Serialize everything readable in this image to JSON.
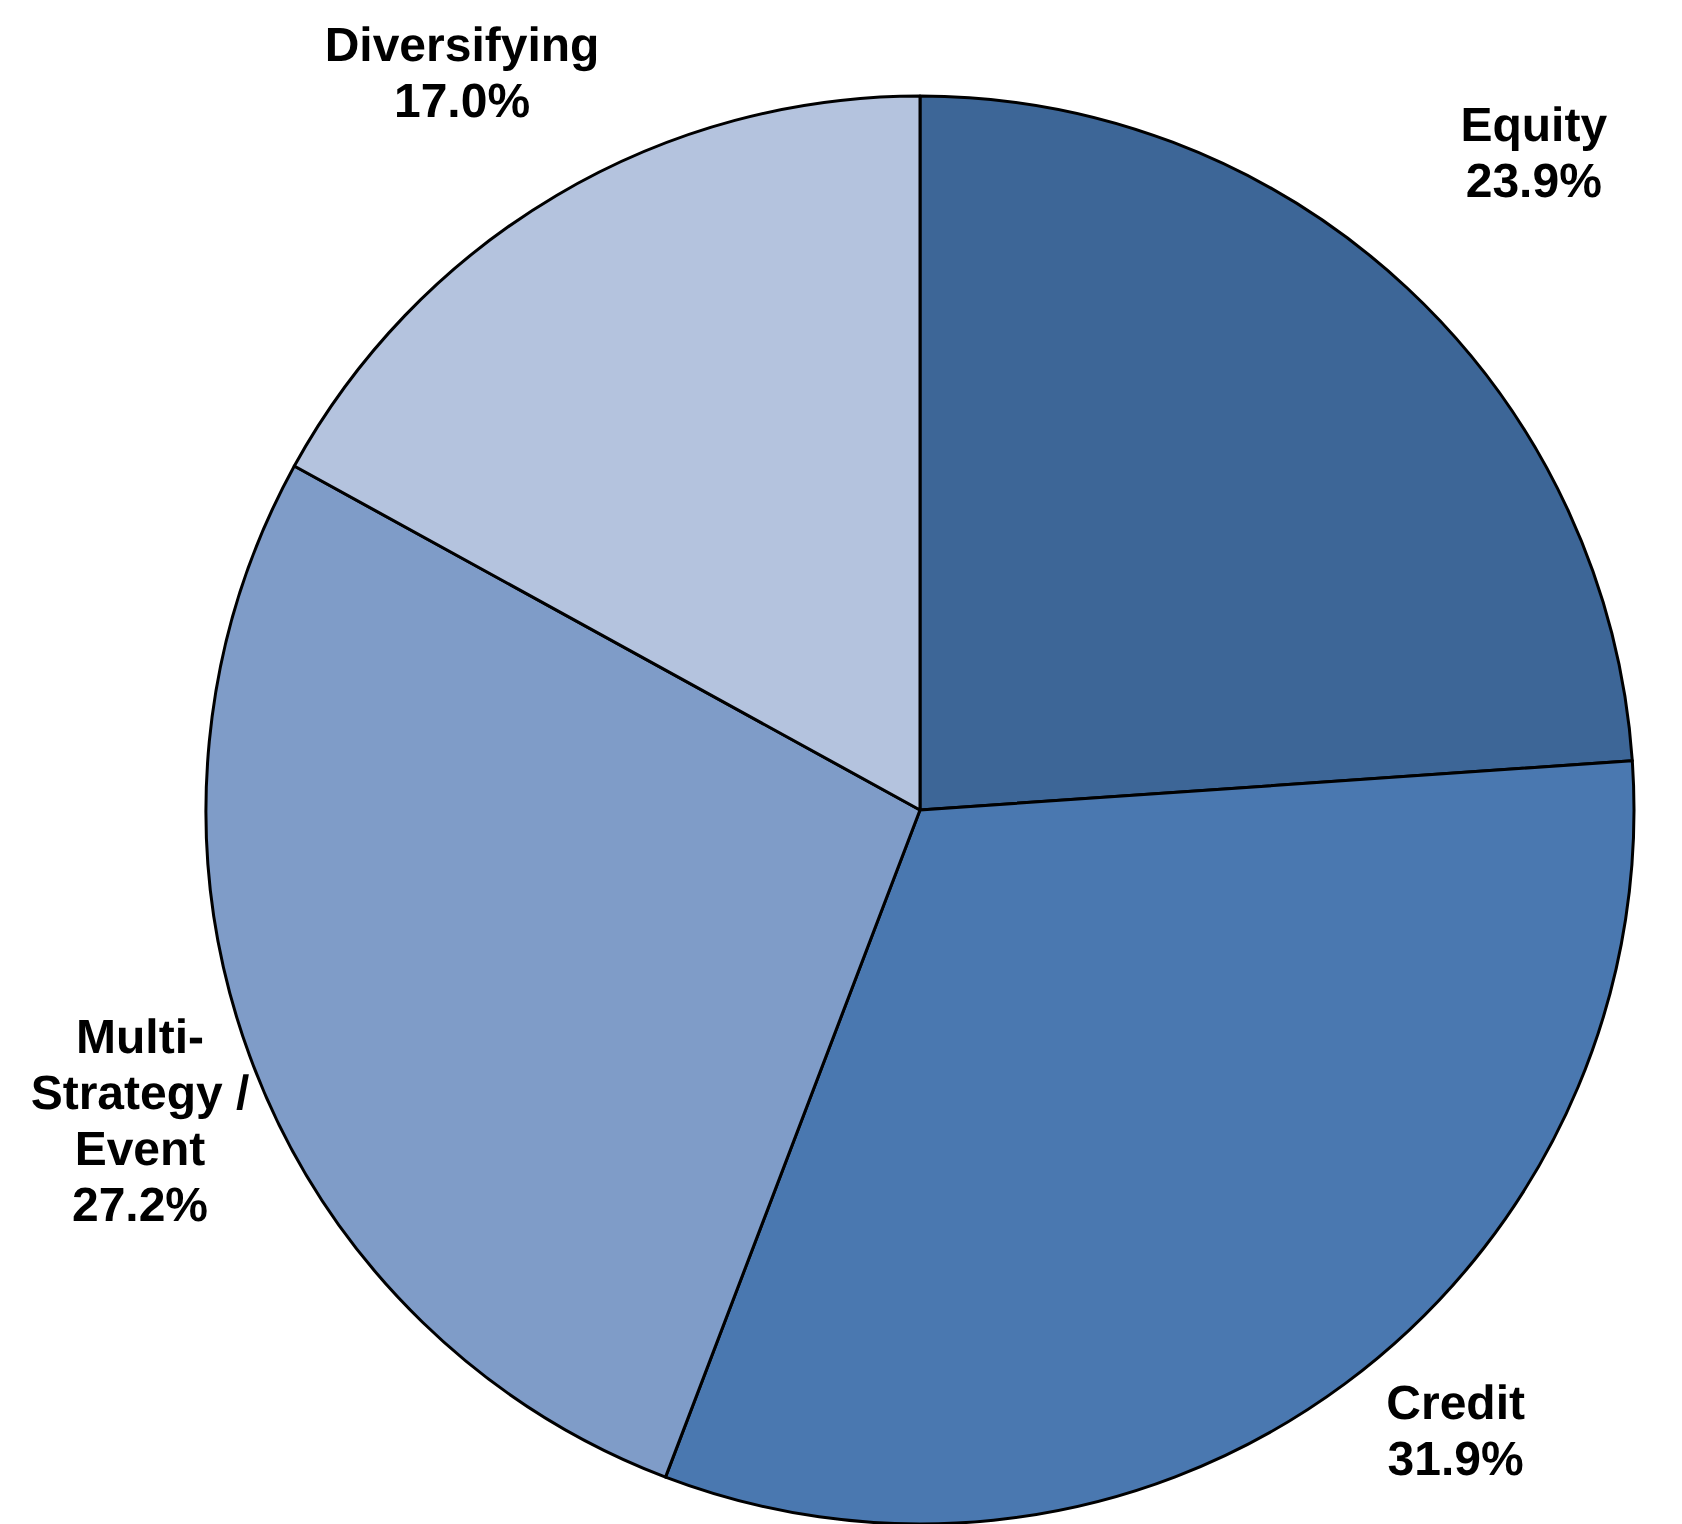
{
  "chart_data": {
    "type": "pie",
    "categories": [
      "Equity",
      "Credit",
      "Multi-\nStrategy /\nEvent",
      "Diversifying"
    ],
    "values": [
      23.9,
      31.9,
      27.2,
      17.0
    ],
    "colors": [
      "#3d6697",
      "#4a78b0",
      "#7f9cc8",
      "#b4c3de"
    ],
    "value_labels": [
      "23.9%",
      "31.9%",
      "27.2%",
      "17.0%"
    ]
  }
}
